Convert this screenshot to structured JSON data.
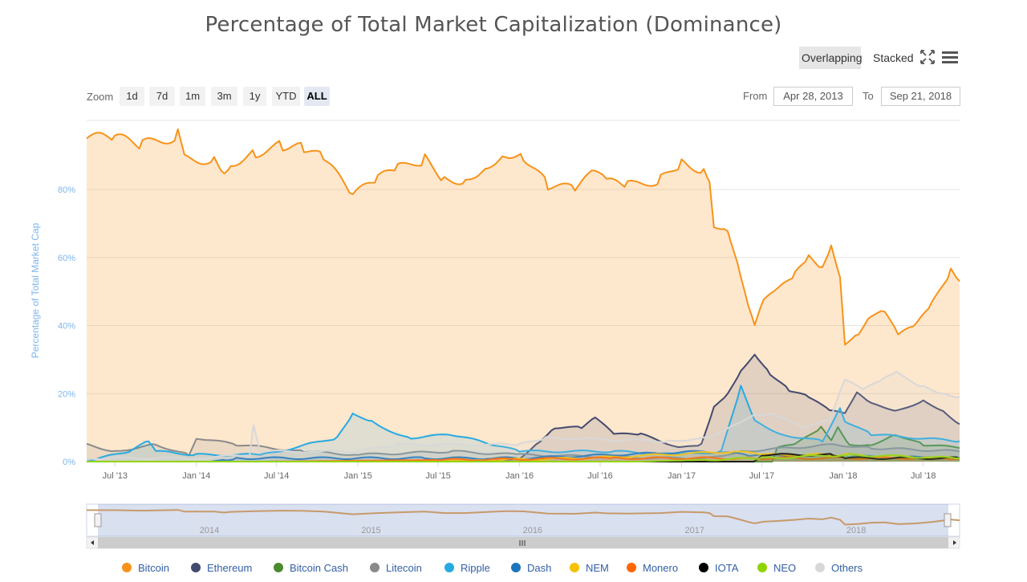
{
  "header": {
    "title": "Percentage of Total Market Capitalization (Dominance)",
    "mode_overlapping": "Overlapping",
    "mode_stacked": "Stacked"
  },
  "zoom": {
    "label": "Zoom",
    "buttons": [
      "1d",
      "7d",
      "1m",
      "3m",
      "1y",
      "YTD",
      "ALL"
    ],
    "active": "ALL"
  },
  "range": {
    "from_label": "From",
    "from_value": "Apr 28, 2013",
    "to_label": "To",
    "to_value": "Sep 21, 2018"
  },
  "navigator": {
    "year_labels": [
      "2014",
      "2015",
      "2016",
      "2017",
      "2018"
    ]
  },
  "chart_data": {
    "type": "area",
    "title": "Percentage of Total Market Capitalization (Dominance)",
    "ylabel": "Percentage of Total Market Cap",
    "ylim": [
      0,
      100
    ],
    "y_ticks": [
      "0%",
      "20%",
      "40%",
      "60%",
      "80%"
    ],
    "x_ticks": [
      "Jul '13",
      "Jan '14",
      "Jul '14",
      "Jan '15",
      "Jul '15",
      "Jan '16",
      "Jul '16",
      "Jan '17",
      "Jul '17",
      "Jan '18",
      "Jul '18"
    ],
    "x_range": [
      "2013-04-28",
      "2018-09-21"
    ],
    "grid": true,
    "legend_position": "bottom",
    "series": [
      {
        "name": "Bitcoin",
        "color": "#f7931a",
        "points": [
          [
            "2013-04-28",
            95
          ],
          [
            "2013-07-01",
            95
          ],
          [
            "2013-09-01",
            93
          ],
          [
            "2013-11-20",
            96
          ],
          [
            "2013-12-05",
            89
          ],
          [
            "2014-02-10",
            89
          ],
          [
            "2014-03-05",
            85
          ],
          [
            "2014-03-20",
            88
          ],
          [
            "2014-05-15",
            91
          ],
          [
            "2014-07-15",
            93
          ],
          [
            "2014-09-01",
            92
          ],
          [
            "2014-10-15",
            89
          ],
          [
            "2014-12-20",
            78
          ],
          [
            "2015-02-15",
            83
          ],
          [
            "2015-04-01",
            86
          ],
          [
            "2015-06-01",
            89
          ],
          [
            "2015-07-15",
            83
          ],
          [
            "2015-09-01",
            83
          ],
          [
            "2015-10-15",
            87
          ],
          [
            "2015-12-01",
            91
          ],
          [
            "2016-01-10",
            90
          ],
          [
            "2016-03-05",
            81
          ],
          [
            "2016-05-05",
            80
          ],
          [
            "2016-06-20",
            85
          ],
          [
            "2016-07-15",
            82
          ],
          [
            "2016-09-01",
            81
          ],
          [
            "2016-11-15",
            83
          ],
          [
            "2017-01-01",
            88
          ],
          [
            "2017-02-20",
            86
          ],
          [
            "2017-03-05",
            83
          ],
          [
            "2017-03-15",
            70
          ],
          [
            "2017-04-15",
            69
          ],
          [
            "2017-05-15",
            55
          ],
          [
            "2017-06-01",
            46
          ],
          [
            "2017-06-15",
            40
          ],
          [
            "2017-07-05",
            47
          ],
          [
            "2017-08-05",
            50
          ],
          [
            "2017-09-15",
            55
          ],
          [
            "2017-10-15",
            60
          ],
          [
            "2017-11-15",
            57
          ],
          [
            "2017-12-05",
            64
          ],
          [
            "2017-12-25",
            55
          ],
          [
            "2018-01-05",
            35
          ],
          [
            "2018-02-05",
            38
          ],
          [
            "2018-03-05",
            43
          ],
          [
            "2018-04-05",
            44
          ],
          [
            "2018-05-05",
            37
          ],
          [
            "2018-06-15",
            40
          ],
          [
            "2018-07-20",
            46
          ],
          [
            "2018-09-01",
            56
          ],
          [
            "2018-09-21",
            53
          ]
        ]
      },
      {
        "name": "Ethereum",
        "color": "#434a6f",
        "points": [
          [
            "2013-04-28",
            0
          ],
          [
            "2015-08-01",
            0
          ],
          [
            "2016-01-01",
            1
          ],
          [
            "2016-02-15",
            6
          ],
          [
            "2016-03-20",
            10
          ],
          [
            "2016-05-20",
            10
          ],
          [
            "2016-06-20",
            13
          ],
          [
            "2016-08-01",
            8
          ],
          [
            "2016-10-01",
            8
          ],
          [
            "2017-01-01",
            4
          ],
          [
            "2017-02-15",
            5
          ],
          [
            "2017-03-15",
            16
          ],
          [
            "2017-04-15",
            20
          ],
          [
            "2017-05-15",
            27
          ],
          [
            "2017-06-15",
            32
          ],
          [
            "2017-07-20",
            26
          ],
          [
            "2017-09-01",
            21
          ],
          [
            "2017-10-15",
            19
          ],
          [
            "2017-12-01",
            15
          ],
          [
            "2018-01-05",
            14
          ],
          [
            "2018-02-01",
            20
          ],
          [
            "2018-03-05",
            17
          ],
          [
            "2018-05-05",
            15
          ],
          [
            "2018-07-01",
            18
          ],
          [
            "2018-08-15",
            15
          ],
          [
            "2018-09-21",
            11
          ]
        ]
      },
      {
        "name": "Bitcoin Cash",
        "color": "#4b8a2e",
        "points": [
          [
            "2013-04-28",
            0
          ],
          [
            "2017-07-25",
            0
          ],
          [
            "2017-08-05",
            4
          ],
          [
            "2017-09-15",
            5
          ],
          [
            "2017-11-12",
            10
          ],
          [
            "2017-12-05",
            6
          ],
          [
            "2017-12-20",
            10
          ],
          [
            "2018-01-15",
            5
          ],
          [
            "2018-03-05",
            5
          ],
          [
            "2018-05-01",
            8
          ],
          [
            "2018-07-01",
            5
          ],
          [
            "2018-09-21",
            4
          ]
        ]
      },
      {
        "name": "Litecoin",
        "color": "#8a8a8a",
        "points": [
          [
            "2013-04-28",
            5
          ],
          [
            "2013-07-01",
            3
          ],
          [
            "2013-10-01",
            5
          ],
          [
            "2013-12-15",
            2
          ],
          [
            "2014-01-01",
            7
          ],
          [
            "2014-04-01",
            5
          ],
          [
            "2014-09-01",
            3
          ],
          [
            "2015-01-01",
            2
          ],
          [
            "2015-08-01",
            3
          ],
          [
            "2016-01-01",
            2
          ],
          [
            "2016-12-01",
            1
          ],
          [
            "2017-03-01",
            1
          ],
          [
            "2017-05-15",
            3
          ],
          [
            "2017-12-15",
            5
          ],
          [
            "2018-03-05",
            4
          ],
          [
            "2018-09-21",
            3
          ]
        ]
      },
      {
        "name": "Ripple",
        "color": "#27aae1",
        "points": [
          [
            "2013-04-28",
            0
          ],
          [
            "2013-08-01",
            3
          ],
          [
            "2013-09-15",
            6
          ],
          [
            "2013-10-01",
            3
          ],
          [
            "2014-01-01",
            2
          ],
          [
            "2014-06-01",
            2
          ],
          [
            "2014-11-15",
            7
          ],
          [
            "2014-12-20",
            14
          ],
          [
            "2015-02-01",
            12
          ],
          [
            "2015-03-15",
            9
          ],
          [
            "2015-05-01",
            7
          ],
          [
            "2015-08-01",
            8
          ],
          [
            "2015-11-01",
            5
          ],
          [
            "2016-01-01",
            3
          ],
          [
            "2016-08-01",
            3
          ],
          [
            "2017-01-01",
            2
          ],
          [
            "2017-04-01",
            3
          ],
          [
            "2017-05-15",
            22
          ],
          [
            "2017-06-15",
            12
          ],
          [
            "2017-08-15",
            8
          ],
          [
            "2017-11-15",
            6
          ],
          [
            "2017-12-25",
            16
          ],
          [
            "2018-01-05",
            12
          ],
          [
            "2018-03-05",
            8
          ],
          [
            "2018-09-21",
            6
          ]
        ]
      },
      {
        "name": "Dash",
        "color": "#1c75bc",
        "points": [
          [
            "2013-04-28",
            0
          ],
          [
            "2014-02-01",
            0
          ],
          [
            "2014-04-01",
            1
          ],
          [
            "2015-06-01",
            1
          ],
          [
            "2016-01-01",
            1
          ],
          [
            "2017-03-01",
            3
          ],
          [
            "2017-06-01",
            2
          ],
          [
            "2018-09-21",
            1
          ]
        ]
      },
      {
        "name": "NEM",
        "color": "#f6c102",
        "points": [
          [
            "2013-04-28",
            0
          ],
          [
            "2015-04-01",
            0
          ],
          [
            "2016-06-01",
            1
          ],
          [
            "2017-05-01",
            3
          ],
          [
            "2017-07-01",
            2
          ],
          [
            "2018-01-05",
            2
          ],
          [
            "2018-09-21",
            1
          ]
        ]
      },
      {
        "name": "Monero",
        "color": "#ff6600",
        "points": [
          [
            "2013-04-28",
            0
          ],
          [
            "2014-06-01",
            0
          ],
          [
            "2016-08-01",
            1
          ],
          [
            "2017-06-01",
            1
          ],
          [
            "2018-09-21",
            1
          ]
        ]
      },
      {
        "name": "IOTA",
        "color": "#000000",
        "points": [
          [
            "2013-04-28",
            0
          ],
          [
            "2017-06-13",
            0
          ],
          [
            "2017-07-01",
            2
          ],
          [
            "2017-12-10",
            2
          ],
          [
            "2018-01-05",
            1
          ],
          [
            "2018-09-21",
            1
          ]
        ]
      },
      {
        "name": "NEO",
        "color": "#8fd400",
        "points": [
          [
            "2013-04-28",
            0
          ],
          [
            "2016-10-01",
            0
          ],
          [
            "2017-07-01",
            1
          ],
          [
            "2018-01-15",
            2
          ],
          [
            "2018-09-21",
            1
          ]
        ]
      },
      {
        "name": "Others",
        "color": "#d8d8d8",
        "points": [
          [
            "2013-04-28",
            1
          ],
          [
            "2014-01-01",
            1
          ],
          [
            "2014-05-01",
            2
          ],
          [
            "2014-05-10",
            11
          ],
          [
            "2014-05-25",
            3
          ],
          [
            "2014-10-01",
            3
          ],
          [
            "2015-01-01",
            3
          ],
          [
            "2015-04-01",
            5
          ],
          [
            "2016-01-01",
            5
          ],
          [
            "2016-03-01",
            7
          ],
          [
            "2016-12-01",
            6
          ],
          [
            "2017-03-01",
            7
          ],
          [
            "2017-05-01",
            11
          ],
          [
            "2017-06-15",
            14
          ],
          [
            "2017-08-01",
            14
          ],
          [
            "2017-10-01",
            10
          ],
          [
            "2017-12-01",
            12
          ],
          [
            "2018-01-05",
            24
          ],
          [
            "2018-02-15",
            21
          ],
          [
            "2018-04-01",
            24
          ],
          [
            "2018-05-01",
            26
          ],
          [
            "2018-07-01",
            22
          ],
          [
            "2018-08-15",
            20
          ],
          [
            "2018-09-21",
            19
          ]
        ]
      }
    ]
  }
}
